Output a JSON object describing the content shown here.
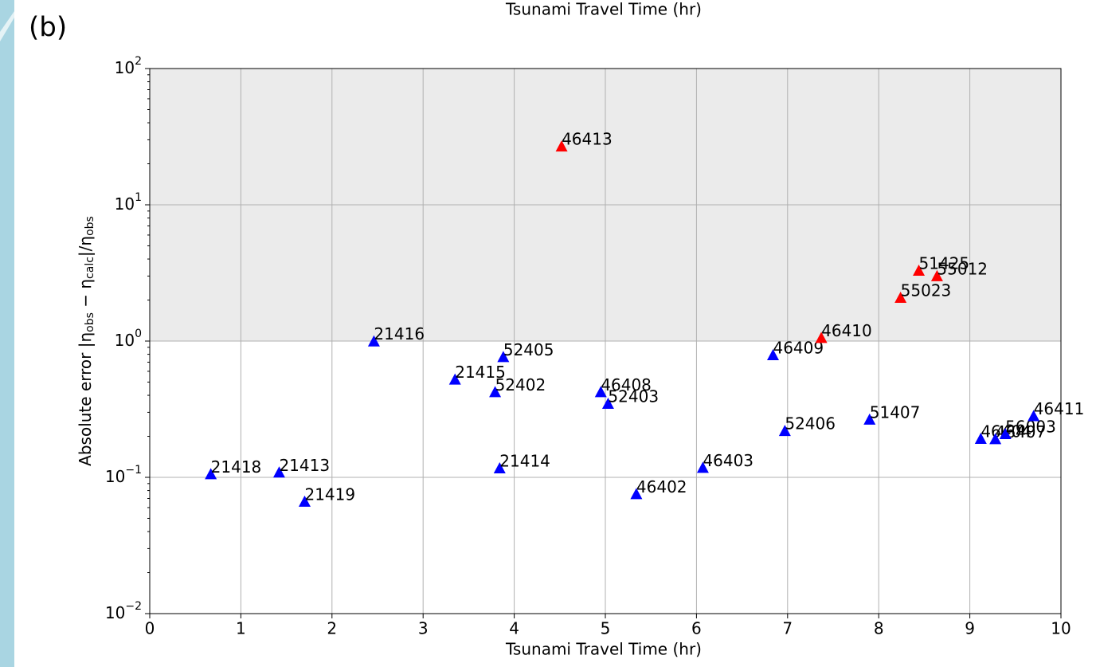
{
  "header_text": "Tsunami Travel Time (hr)",
  "panel_label": "(b)",
  "chart_data": {
    "type": "scatter",
    "xlabel": "Tsunami Travel Time (hr)",
    "ylabel": [
      {
        "text": "Absolute error |η"
      },
      {
        "text": "obs",
        "sub": true
      },
      {
        "text": " − η"
      },
      {
        "text": "calc",
        "sub": true
      },
      {
        "text": "|/η"
      },
      {
        "text": "obs",
        "sub": true
      }
    ],
    "xlim": [
      0,
      10
    ],
    "ylim": [
      0.01,
      100
    ],
    "ylog": true,
    "grid": true,
    "shaded_ylim": [
      1,
      100
    ],
    "shade_color": "#ebebeb",
    "xticks": [
      0,
      1,
      2,
      3,
      4,
      5,
      6,
      7,
      8,
      9,
      10
    ],
    "yticks": [
      {
        "value": 0.01,
        "label": "10",
        "exponent": "−2"
      },
      {
        "value": 0.1,
        "label": "10",
        "exponent": "−1"
      },
      {
        "value": 1,
        "label": "10",
        "exponent": "0"
      },
      {
        "value": 10,
        "label": "10",
        "exponent": "1"
      },
      {
        "value": 100,
        "label": "10",
        "exponent": "2"
      }
    ],
    "labels": [
      "21418",
      "21413",
      "21419",
      "21416",
      "21415",
      "52402",
      "52405",
      "21414",
      "46413",
      "46408",
      "52403",
      "46402",
      "46403",
      "46409",
      "52406",
      "46410",
      "51407",
      "55023",
      "51425",
      "55012",
      "46404",
      "46407",
      "56003",
      "46411"
    ],
    "x": [
      0.67,
      1.42,
      1.7,
      2.46,
      3.35,
      3.79,
      3.88,
      3.84,
      4.52,
      4.95,
      5.03,
      5.34,
      6.07,
      6.84,
      6.97,
      7.37,
      7.9,
      8.24,
      8.44,
      8.64,
      9.12,
      9.28,
      9.39,
      9.7
    ],
    "values": [
      0.105,
      0.108,
      0.066,
      0.99,
      0.52,
      0.42,
      0.76,
      0.116,
      26.7,
      0.42,
      0.345,
      0.075,
      0.117,
      0.785,
      0.218,
      1.05,
      0.264,
      2.07,
      3.27,
      2.98,
      0.191,
      0.19,
      0.207,
      0.28
    ],
    "colors": [
      "#0000ff",
      "#0000ff",
      "#0000ff",
      "#0000ff",
      "#0000ff",
      "#0000ff",
      "#0000ff",
      "#0000ff",
      "#ff0000",
      "#0000ff",
      "#0000ff",
      "#0000ff",
      "#0000ff",
      "#0000ff",
      "#0000ff",
      "#ff0000",
      "#0000ff",
      "#ff0000",
      "#ff0000",
      "#ff0000",
      "#0000ff",
      "#0000ff",
      "#0000ff",
      "#0000ff"
    ]
  }
}
